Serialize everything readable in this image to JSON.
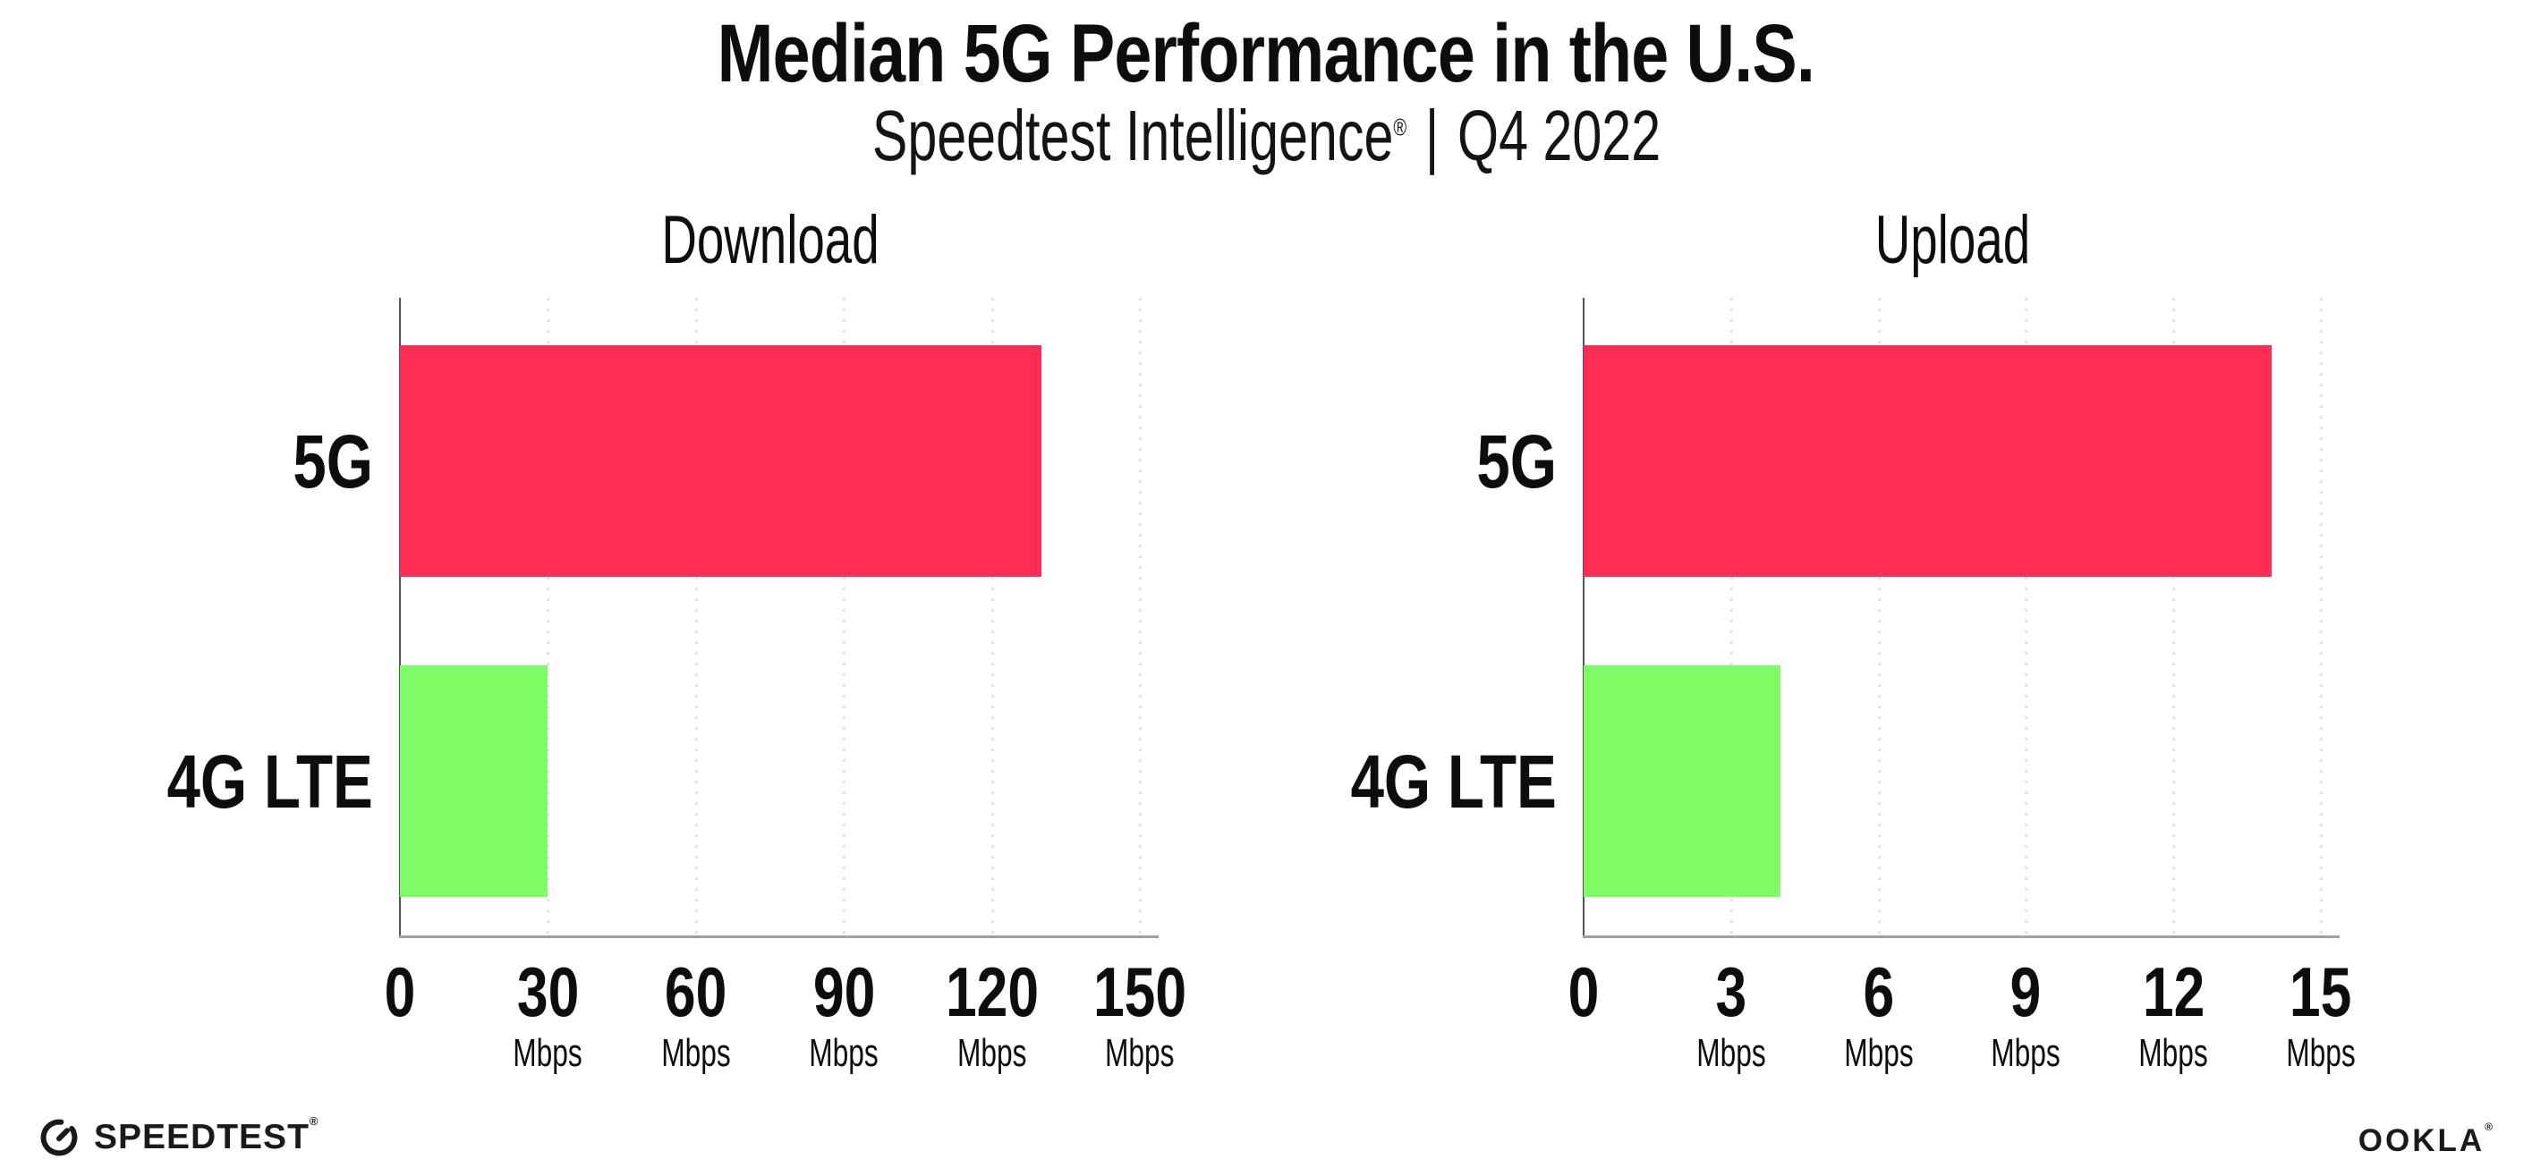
{
  "header": {
    "title": "Median 5G Performance in the U.S.",
    "subtitle_brand": "Speedtest Intelligence",
    "subtitle_reg": "®",
    "subtitle_sep": "|",
    "subtitle_period": "Q4 2022"
  },
  "footer": {
    "speedtest_label": "SPEEDTEST",
    "speedtest_mark": "®",
    "ookla_label": "OOKLA",
    "ookla_mark": "®"
  },
  "colors": {
    "bar_5g": "#FF2D55",
    "bar_4g_lte": "#7DFC66",
    "y_axis": "#55565C",
    "x_axis": "#9FA0A6",
    "gridline": "#E2E2EC",
    "text": "#0D0D0D"
  },
  "chart_data": [
    {
      "type": "bar",
      "orientation": "horizontal",
      "title": "Download",
      "categories": [
        "5G",
        "4G LTE"
      ],
      "values": [
        130,
        30
      ],
      "unit": "Mbps",
      "xlim": [
        0,
        150
      ],
      "xticks": [
        0,
        30,
        60,
        90,
        120,
        150
      ],
      "bar_colors": [
        "#FF2D55",
        "#7DFC66"
      ],
      "grid": "vertical-dotted",
      "legend": "none"
    },
    {
      "type": "bar",
      "orientation": "horizontal",
      "title": "Upload",
      "categories": [
        "5G",
        "4G LTE"
      ],
      "values": [
        14,
        4
      ],
      "unit": "Mbps",
      "xlim": [
        0,
        15
      ],
      "xticks": [
        0,
        3,
        6,
        9,
        12,
        15
      ],
      "bar_colors": [
        "#FF2D55",
        "#7DFC66"
      ],
      "grid": "vertical-dotted",
      "legend": "none"
    }
  ]
}
